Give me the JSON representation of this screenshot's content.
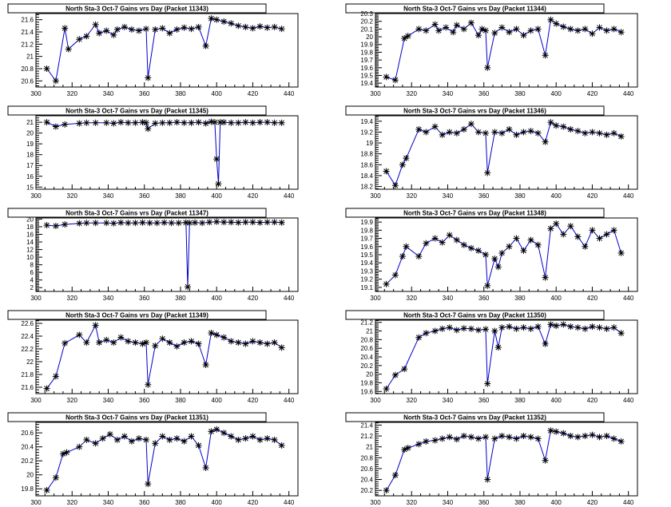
{
  "chart_data": [
    {
      "type": "line",
      "title": "North Sta-3 Oct-7 Gains vrs Day (Packet 11343)",
      "xlim": [
        300,
        445
      ],
      "ylim": [
        20.5,
        21.7
      ],
      "xticks": [
        300,
        320,
        340,
        360,
        380,
        400,
        420,
        440
      ],
      "yticks": [
        20.6,
        20.8,
        21,
        21.2,
        21.4,
        21.6
      ],
      "ytick_labels": [
        "20.6",
        "20.8",
        "21",
        "21.2",
        "21.4",
        "21.6"
      ],
      "x": [
        306,
        311,
        316,
        318,
        324,
        328,
        333,
        335,
        339,
        343,
        345,
        349,
        353,
        357,
        361,
        362,
        366,
        370,
        374,
        378,
        382,
        386,
        390,
        394,
        397,
        400,
        404,
        408,
        412,
        416,
        420,
        424,
        428,
        432,
        436
      ],
      "y": [
        20.8,
        20.6,
        21.46,
        21.12,
        21.28,
        21.33,
        21.52,
        21.38,
        21.42,
        21.35,
        21.44,
        21.48,
        21.44,
        21.42,
        21.45,
        20.65,
        21.44,
        21.46,
        21.38,
        21.44,
        21.47,
        21.45,
        21.48,
        21.17,
        21.62,
        21.6,
        21.57,
        21.54,
        21.5,
        21.48,
        21.46,
        21.49,
        21.47,
        21.48,
        21.45
      ]
    },
    {
      "type": "line",
      "title": "North Sta-3 Oct-7 Gains vrs Day (Packet 11344)",
      "xlim": [
        300,
        445
      ],
      "ylim": [
        19.35,
        20.3
      ],
      "xticks": [
        300,
        320,
        340,
        360,
        380,
        400,
        420,
        440
      ],
      "yticks": [
        19.4,
        19.5,
        19.6,
        19.7,
        19.8,
        19.9,
        20,
        20.1,
        20.2,
        20.3
      ],
      "ytick_labels": [
        "19.4",
        "19.5",
        "19.6",
        "19.7",
        "19.8",
        "19.9",
        "20",
        "20.1",
        "20.2",
        "20.3"
      ],
      "x": [
        306,
        311,
        316,
        318,
        324,
        328,
        333,
        335,
        339,
        343,
        345,
        349,
        353,
        357,
        359,
        361,
        362,
        366,
        370,
        374,
        378,
        382,
        386,
        390,
        394,
        397,
        400,
        404,
        408,
        412,
        416,
        420,
        424,
        428,
        432,
        436
      ],
      "y": [
        19.48,
        19.44,
        19.98,
        20.01,
        20.1,
        20.08,
        20.16,
        20.08,
        20.12,
        20.06,
        20.15,
        20.1,
        20.18,
        20.02,
        20.1,
        20.08,
        19.6,
        20.05,
        20.12,
        20.06,
        20.1,
        20.02,
        20.08,
        20.1,
        19.76,
        20.22,
        20.17,
        20.13,
        20.1,
        20.08,
        20.1,
        20.04,
        20.12,
        20.08,
        20.1,
        20.06
      ]
    },
    {
      "type": "line",
      "title": "North Sta-3 Oct-7 Gains vrs Day (Packet 11345)",
      "xlim": [
        300,
        445
      ],
      "ylim": [
        14.8,
        21.6
      ],
      "xticks": [
        300,
        320,
        340,
        360,
        380,
        400,
        420,
        440
      ],
      "yticks": [
        15,
        16,
        17,
        18,
        19,
        20,
        21
      ],
      "ytick_labels": [
        "15",
        "16",
        "17",
        "18",
        "19",
        "20",
        "21"
      ],
      "x": [
        306,
        311,
        316,
        324,
        328,
        333,
        339,
        343,
        347,
        351,
        355,
        359,
        361,
        362,
        366,
        370,
        374,
        378,
        382,
        386,
        390,
        394,
        397,
        399,
        400,
        401,
        402,
        404,
        408,
        412,
        416,
        420,
        424,
        428,
        432,
        436
      ],
      "y": [
        21.0,
        20.6,
        20.8,
        20.9,
        20.95,
        20.95,
        20.95,
        20.9,
        21.0,
        20.95,
        20.95,
        21.0,
        20.95,
        20.4,
        20.9,
        20.95,
        20.95,
        21.0,
        20.95,
        20.95,
        21.0,
        20.9,
        21.05,
        21.0,
        17.6,
        15.3,
        21.0,
        21.0,
        20.95,
        20.95,
        21.0,
        20.95,
        21.0,
        21.0,
        20.95,
        20.95
      ]
    },
    {
      "type": "line",
      "title": "North Sta-3 Oct-7 Gains vrs Day (Packet 11346)",
      "xlim": [
        300,
        445
      ],
      "ylim": [
        18.15,
        19.5
      ],
      "xticks": [
        300,
        320,
        340,
        360,
        380,
        400,
        420,
        440
      ],
      "yticks": [
        18.2,
        18.4,
        18.6,
        18.8,
        19,
        19.2,
        19.4
      ],
      "ytick_labels": [
        "18.2",
        "18.4",
        "18.6",
        "18.8",
        "19",
        "19.2",
        "19.4"
      ],
      "x": [
        306,
        311,
        315,
        317,
        324,
        328,
        333,
        337,
        341,
        345,
        349,
        353,
        357,
        361,
        362,
        366,
        370,
        374,
        378,
        382,
        386,
        390,
        394,
        397,
        400,
        404,
        408,
        412,
        416,
        420,
        424,
        428,
        432,
        436
      ],
      "y": [
        18.48,
        18.22,
        18.6,
        18.72,
        19.25,
        19.2,
        19.3,
        19.15,
        19.2,
        19.18,
        19.25,
        19.35,
        19.2,
        19.18,
        18.45,
        19.2,
        19.18,
        19.25,
        19.15,
        19.2,
        19.22,
        19.18,
        19.02,
        19.38,
        19.32,
        19.3,
        19.25,
        19.22,
        19.18,
        19.2,
        19.18,
        19.15,
        19.18,
        19.12
      ]
    },
    {
      "type": "line",
      "title": "North Sta-3 Oct-7 Gains vrs Day (Packet 11347)",
      "xlim": [
        300,
        445
      ],
      "ylim": [
        1,
        20.3
      ],
      "xticks": [
        300,
        320,
        340,
        360,
        380,
        400,
        420,
        440
      ],
      "yticks": [
        2,
        4,
        6,
        8,
        10,
        12,
        14,
        16,
        18,
        20
      ],
      "ytick_labels": [
        "2",
        "4",
        "6",
        "8",
        "10",
        "12",
        "14",
        "16",
        "18",
        "20"
      ],
      "x": [
        306,
        311,
        316,
        324,
        328,
        333,
        339,
        343,
        347,
        351,
        355,
        359,
        363,
        367,
        371,
        375,
        379,
        383,
        384,
        385,
        388,
        392,
        396,
        400,
        404,
        408,
        412,
        416,
        420,
        424,
        428,
        432,
        436
      ],
      "y": [
        18.4,
        18.2,
        18.6,
        18.9,
        19.0,
        19.0,
        19.0,
        18.9,
        19.1,
        19.0,
        19.0,
        19.1,
        19.0,
        19.0,
        19.1,
        19.0,
        19.0,
        19.1,
        2.2,
        19.0,
        19.1,
        19.0,
        19.2,
        19.3,
        19.2,
        19.2,
        19.1,
        19.2,
        19.2,
        19.1,
        19.2,
        19.2,
        19.1
      ]
    },
    {
      "type": "line",
      "title": "North Sta-3 Oct-7 Gains vrs Day (Packet 11348)",
      "xlim": [
        300,
        445
      ],
      "ylim": [
        19.05,
        19.95
      ],
      "xticks": [
        300,
        320,
        340,
        360,
        380,
        400,
        420,
        440
      ],
      "yticks": [
        19.1,
        19.2,
        19.3,
        19.4,
        19.5,
        19.6,
        19.7,
        19.8,
        19.9
      ],
      "ytick_labels": [
        "19.1",
        "19.2",
        "19.3",
        "19.4",
        "19.5",
        "19.6",
        "19.7",
        "19.8",
        "19.9"
      ],
      "x": [
        306,
        311,
        315,
        317,
        324,
        328,
        333,
        337,
        341,
        345,
        349,
        353,
        357,
        361,
        362,
        366,
        368,
        370,
        374,
        378,
        382,
        386,
        390,
        394,
        397,
        400,
        404,
        408,
        412,
        416,
        420,
        424,
        428,
        432,
        436
      ],
      "y": [
        19.14,
        19.25,
        19.48,
        19.6,
        19.48,
        19.64,
        19.7,
        19.65,
        19.74,
        19.68,
        19.62,
        19.58,
        19.55,
        19.5,
        19.12,
        19.45,
        19.35,
        19.52,
        19.6,
        19.7,
        19.55,
        19.68,
        19.62,
        19.22,
        19.82,
        19.88,
        19.75,
        19.85,
        19.72,
        19.6,
        19.8,
        19.7,
        19.75,
        19.8,
        19.52
      ]
    },
    {
      "type": "line",
      "title": "North Sta-3 Oct-7 Gains vrs Day (Packet 11349)",
      "xlim": [
        300,
        445
      ],
      "ylim": [
        21.5,
        22.65
      ],
      "xticks": [
        300,
        320,
        340,
        360,
        380,
        400,
        420,
        440
      ],
      "yticks": [
        21.6,
        21.8,
        22,
        22.2,
        22.4,
        22.6
      ],
      "ytick_labels": [
        "21.6",
        "21.8",
        "22",
        "22.2",
        "22.4",
        "22.6"
      ],
      "x": [
        306,
        311,
        316,
        324,
        328,
        333,
        335,
        339,
        343,
        347,
        351,
        355,
        359,
        361,
        362,
        366,
        370,
        374,
        378,
        382,
        386,
        390,
        394,
        397,
        400,
        404,
        408,
        412,
        416,
        420,
        424,
        428,
        432,
        436
      ],
      "y": [
        21.58,
        21.77,
        22.29,
        22.42,
        22.3,
        22.57,
        22.3,
        22.34,
        22.3,
        22.38,
        22.32,
        22.3,
        22.28,
        22.3,
        21.64,
        22.25,
        22.36,
        22.3,
        22.24,
        22.3,
        22.32,
        22.28,
        21.95,
        22.45,
        22.42,
        22.38,
        22.32,
        22.3,
        22.28,
        22.32,
        22.3,
        22.28,
        22.3,
        22.22
      ]
    },
    {
      "type": "line",
      "title": "North Sta-3 Oct-7 Gains vrs Day (Packet 11350)",
      "xlim": [
        300,
        445
      ],
      "ylim": [
        19.55,
        21.25
      ],
      "xticks": [
        300,
        320,
        340,
        360,
        380,
        400,
        420,
        440
      ],
      "yticks": [
        19.6,
        19.8,
        20,
        20.2,
        20.4,
        20.6,
        20.8,
        21,
        21.2
      ],
      "ytick_labels": [
        "19.6",
        "19.8",
        "20",
        "20.2",
        "20.4",
        "20.6",
        "20.8",
        "21",
        "21.2"
      ],
      "x": [
        306,
        311,
        316,
        324,
        328,
        333,
        337,
        341,
        345,
        349,
        353,
        357,
        361,
        362,
        366,
        368,
        370,
        374,
        378,
        382,
        386,
        390,
        394,
        397,
        400,
        404,
        408,
        412,
        416,
        420,
        424,
        428,
        432,
        436
      ],
      "y": [
        19.66,
        19.98,
        20.12,
        20.85,
        20.95,
        21.0,
        21.05,
        21.08,
        21.02,
        21.06,
        21.05,
        21.02,
        21.04,
        19.78,
        21.0,
        20.62,
        21.08,
        21.1,
        21.05,
        21.08,
        21.05,
        21.1,
        20.7,
        21.15,
        21.12,
        21.15,
        21.1,
        21.08,
        21.05,
        21.1,
        21.08,
        21.05,
        21.08,
        20.95
      ]
    },
    {
      "type": "line",
      "title": "North Sta-3 Oct-7 Gains vrs Day (Packet 11351)",
      "xlim": [
        300,
        445
      ],
      "ylim": [
        19.7,
        20.75
      ],
      "xticks": [
        300,
        320,
        340,
        360,
        380,
        400,
        420,
        440
      ],
      "yticks": [
        19.8,
        20,
        20.2,
        20.4,
        20.6
      ],
      "ytick_labels": [
        "19.8",
        "20",
        "20.2",
        "20.4",
        "20.6"
      ],
      "x": [
        306,
        311,
        315,
        317,
        324,
        328,
        333,
        337,
        341,
        345,
        349,
        353,
        357,
        361,
        362,
        366,
        370,
        374,
        378,
        382,
        386,
        390,
        394,
        397,
        400,
        404,
        408,
        412,
        416,
        420,
        424,
        428,
        432,
        436
      ],
      "y": [
        19.78,
        19.96,
        20.3,
        20.32,
        20.4,
        20.5,
        20.45,
        20.52,
        20.58,
        20.5,
        20.55,
        20.48,
        20.52,
        20.5,
        19.87,
        20.45,
        20.55,
        20.5,
        20.52,
        20.48,
        20.55,
        20.42,
        20.1,
        20.62,
        20.65,
        20.6,
        20.55,
        20.5,
        20.52,
        20.55,
        20.5,
        20.52,
        20.5,
        20.42
      ]
    },
    {
      "type": "line",
      "title": "North Sta-3 Oct-7 Gains vrs Day (Packet 11352)",
      "xlim": [
        300,
        445
      ],
      "ylim": [
        20.1,
        21.45
      ],
      "xticks": [
        300,
        320,
        340,
        360,
        380,
        400,
        420,
        440
      ],
      "yticks": [
        20.2,
        20.4,
        20.6,
        20.8,
        21,
        21.2,
        21.4
      ],
      "ytick_labels": [
        "20.2",
        "20.4",
        "20.6",
        "20.8",
        "21",
        "21.2",
        "21.4"
      ],
      "x": [
        306,
        311,
        316,
        318,
        324,
        328,
        333,
        337,
        341,
        345,
        349,
        353,
        357,
        361,
        362,
        366,
        370,
        374,
        378,
        382,
        386,
        390,
        394,
        397,
        400,
        404,
        408,
        412,
        416,
        420,
        424,
        428,
        432,
        436
      ],
      "y": [
        20.2,
        20.48,
        20.95,
        20.98,
        21.05,
        21.1,
        21.12,
        21.15,
        21.18,
        21.14,
        21.2,
        21.18,
        21.15,
        21.18,
        20.4,
        21.15,
        21.2,
        21.18,
        21.15,
        21.2,
        21.18,
        21.15,
        20.75,
        21.3,
        21.28,
        21.25,
        21.2,
        21.18,
        21.2,
        21.22,
        21.18,
        21.2,
        21.15,
        21.1
      ]
    }
  ]
}
